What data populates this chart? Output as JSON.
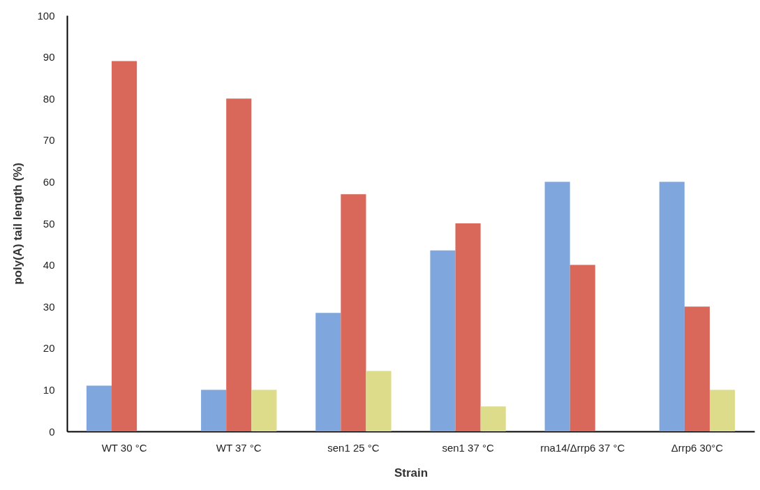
{
  "chart_data": {
    "type": "bar",
    "xlabel": "Strain",
    "ylabel": "poly(A) tail length (%)",
    "categories": [
      "WT 30 °C",
      "WT 37 °C",
      "sen1 25 °C",
      "sen1 37 °C",
      "rna14/Δrrp6 37 °C",
      "Δrrp6 30°C"
    ],
    "series": [
      {
        "color": "#7fa6dd",
        "values": [
          11,
          10,
          28.5,
          43.5,
          60,
          60
        ]
      },
      {
        "color": "#d9675a",
        "values": [
          89,
          80,
          57,
          50,
          40,
          30
        ]
      },
      {
        "color": "#dcdc8a",
        "values": [
          null,
          10,
          14.5,
          6,
          null,
          10
        ]
      }
    ],
    "ylim": [
      0,
      100
    ],
    "yticks": [
      0,
      10,
      20,
      30,
      40,
      50,
      60,
      70,
      80,
      90,
      100
    ],
    "grid": false,
    "legend": false
  }
}
